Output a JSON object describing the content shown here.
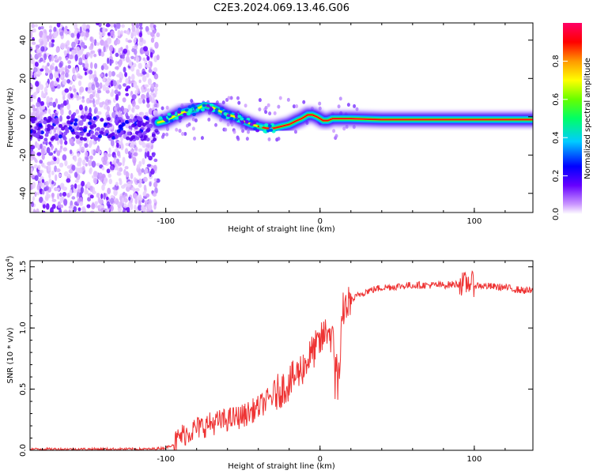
{
  "chart_data": [
    {
      "type": "heatmap",
      "title": "C2E3.2024.069.13.46.G06",
      "xlabel": "Height of straight line (km)",
      "ylabel": "Frequency (Hz)",
      "xlim": [
        -188,
        138
      ],
      "ylim": [
        -50,
        49
      ],
      "xticks": [
        -100,
        0,
        100
      ],
      "yticks": [
        -40,
        -20,
        0,
        20,
        40
      ],
      "xtick_labels": [
        "-100",
        "0",
        "100"
      ],
      "ytick_labels": [
        "-40",
        "-20",
        "0",
        "20",
        "40"
      ],
      "ridge_x": [
        -105,
        -100,
        -95,
        -90,
        -85,
        -80,
        -75,
        -70,
        -65,
        -60,
        -55,
        -50,
        -47,
        -44,
        -40,
        -35,
        -30,
        -25,
        -20,
        -15,
        -12,
        -10,
        -8,
        -5,
        -2,
        0,
        2,
        5,
        8,
        10,
        20,
        40,
        60,
        80,
        100,
        120,
        138
      ],
      "ridge_y": [
        -3,
        -2,
        0,
        2,
        3,
        4,
        6,
        5,
        3,
        1,
        0,
        -2,
        -3,
        -4,
        -5,
        -6,
        -6,
        -5,
        -4,
        -2,
        -1,
        0,
        1,
        1,
        0,
        -1,
        -2,
        -2,
        -1,
        -1,
        -1,
        -1.5,
        -1.5,
        -1.5,
        -1.5,
        -1.5,
        -1.5
      ],
      "colorbar": {
        "label": "Normalized spectral amplitude",
        "range": [
          0.0,
          1.0
        ],
        "ticks": [
          0.0,
          0.2,
          0.4,
          0.6,
          0.8
        ],
        "tick_labels": [
          "0.0",
          "0.2",
          "0.4",
          "0.6",
          "0.8"
        ],
        "colors": [
          "#ffffff",
          "#cc99ff",
          "#6600ff",
          "#0000ff",
          "#00ccff",
          "#00ff66",
          "#66ff00",
          "#ffff00",
          "#ff9900",
          "#ff0000",
          "#ff0066"
        ]
      },
      "colormap_hint": "purple-blue-cyan-green-yellow-red"
    },
    {
      "type": "line",
      "title": "",
      "xlabel": "Height of straight line (km)",
      "ylabel": "SNR (10 * v/v)",
      "y_multiplier_label": "(x10",
      "y_multiplier_exp": "4",
      "xlim": [
        -188,
        138
      ],
      "ylim": [
        0.0,
        1.55
      ],
      "xticks": [
        -100,
        0,
        100
      ],
      "yticks": [
        0.0,
        0.5,
        1.0,
        1.5
      ],
      "xtick_labels": [
        "-100",
        "0",
        "100"
      ],
      "ytick_labels": [
        "0.0",
        "0.5",
        "1.0",
        "1.5"
      ],
      "series": [
        {
          "name": "SNR",
          "color": "#ee3333",
          "x": [
            -188,
            -170,
            -150,
            -130,
            -110,
            -100,
            -95,
            -90,
            -80,
            -70,
            -60,
            -50,
            -40,
            -30,
            -20,
            -15,
            -10,
            -5,
            0,
            3,
            5,
            8,
            10,
            12,
            15,
            20,
            25,
            30,
            40,
            50,
            60,
            70,
            80,
            90,
            95,
            97,
            100,
            110,
            120,
            130,
            138
          ],
          "values": [
            0.01,
            0.01,
            0.01,
            0.01,
            0.01,
            0.02,
            0.05,
            0.12,
            0.18,
            0.22,
            0.25,
            0.28,
            0.35,
            0.45,
            0.55,
            0.62,
            0.7,
            0.8,
            0.88,
            0.95,
            1.0,
            0.9,
            0.75,
            0.6,
            1.15,
            1.22,
            1.27,
            1.3,
            1.33,
            1.34,
            1.35,
            1.35,
            1.35,
            1.36,
            1.36,
            1.38,
            1.35,
            1.34,
            1.33,
            1.31,
            1.3
          ]
        }
      ]
    }
  ]
}
